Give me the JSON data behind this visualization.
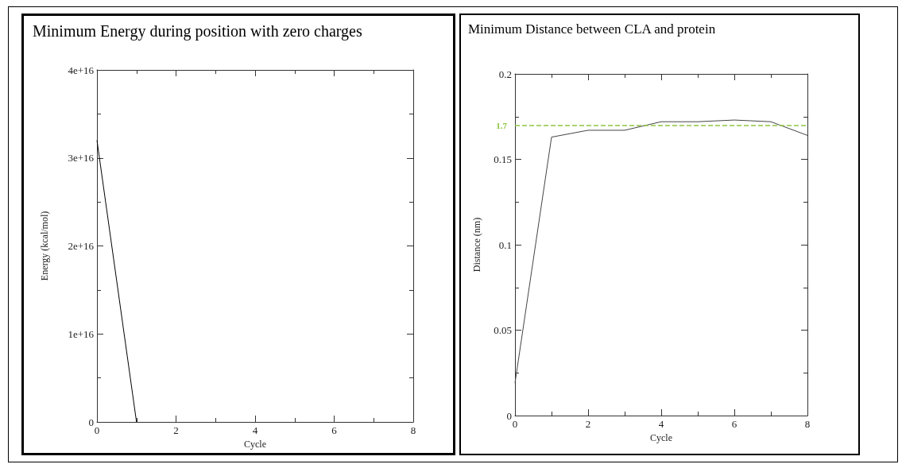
{
  "chart_data": [
    {
      "type": "line",
      "title": "Minimum Energy during position with zero charges",
      "xlabel": "Cycle",
      "ylabel": "Energy (kcal/mol)",
      "x": [
        0,
        1
      ],
      "values": [
        3.2e+16,
        0
      ],
      "color": "#000000",
      "xlim": [
        0,
        8
      ],
      "xticks": [
        0,
        2,
        4,
        6,
        8
      ],
      "ylim": [
        0,
        4e+16
      ],
      "yticks": [
        0,
        {
          "value": 1e+16,
          "label": "1e+16"
        },
        {
          "value": 2e+16,
          "label": "2e+16"
        },
        {
          "value": 3e+16,
          "label": "3e+16"
        },
        {
          "value": 4e+16,
          "label": "4e+16"
        }
      ],
      "grid": false,
      "marker": "none",
      "line_style": "solid"
    },
    {
      "type": "line",
      "title": "Minimum Distance between CLA and protein",
      "xlabel": "Cycle",
      "ylabel": "Distance (nm)",
      "x": [
        0,
        1,
        2,
        3,
        4,
        5,
        6,
        7,
        8
      ],
      "values": [
        0.019,
        0.163,
        0.167,
        0.167,
        0.172,
        0.172,
        0.173,
        0.172,
        0.164
      ],
      "color": "#444444",
      "xlim": [
        0,
        8
      ],
      "xticks": [
        0,
        2,
        4,
        6,
        8
      ],
      "ylim": [
        0,
        0.2
      ],
      "yticks": [
        0,
        0.05,
        0.1,
        0.15,
        0.2
      ],
      "ref_lines": [
        {
          "axis": "y",
          "value": 0.17,
          "color": "#8dc63f",
          "line_style": "dashed"
        }
      ],
      "annotations": [
        "1.7"
      ],
      "grid": false,
      "marker": "none",
      "line_style": "solid"
    }
  ]
}
